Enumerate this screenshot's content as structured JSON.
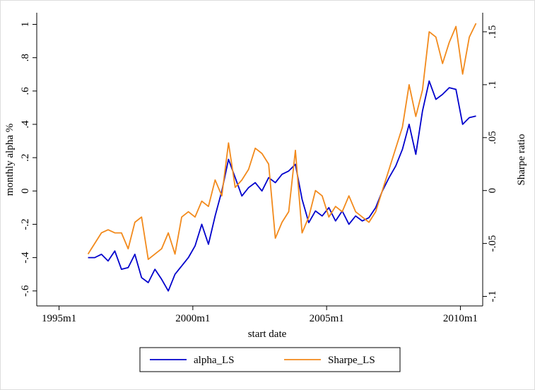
{
  "chart_data": {
    "type": "line",
    "x_label": "start date",
    "y_label": "monthly alpha %",
    "y2_label": "Sharpe ratio",
    "x": [
      433,
      436,
      439,
      442,
      445,
      448,
      451,
      454,
      457,
      460,
      463,
      466,
      469,
      472,
      475,
      478,
      481,
      484,
      487,
      490,
      493,
      496,
      499,
      502,
      505,
      508,
      511,
      514,
      517,
      520,
      523,
      526,
      529,
      532,
      535,
      538,
      541,
      544,
      547,
      550,
      553,
      556,
      559,
      562,
      565,
      568,
      571,
      574,
      577,
      580,
      583,
      586,
      589,
      592,
      595,
      598,
      601,
      604,
      607
    ],
    "series": [
      {
        "name": "alpha_LS",
        "color": "#0000cc",
        "axis": "y",
        "values": [
          -0.4,
          -0.4,
          -0.38,
          -0.42,
          -0.36,
          -0.47,
          -0.46,
          -0.38,
          -0.52,
          -0.55,
          -0.47,
          -0.53,
          -0.6,
          -0.5,
          -0.45,
          -0.4,
          -0.33,
          -0.2,
          -0.32,
          -0.15,
          0.0,
          0.19,
          0.08,
          -0.03,
          0.02,
          0.05,
          0.0,
          0.08,
          0.05,
          0.1,
          0.12,
          0.16,
          -0.05,
          -0.19,
          -0.12,
          -0.15,
          -0.1,
          -0.18,
          -0.12,
          -0.2,
          -0.15,
          -0.18,
          -0.16,
          -0.1,
          0.0,
          0.08,
          0.15,
          0.25,
          0.4,
          0.22,
          0.48,
          0.66,
          0.55,
          0.58,
          0.62,
          0.61,
          0.4,
          0.44,
          0.45
        ]
      },
      {
        "name": "Sharpe_LS",
        "color": "#f28a1c",
        "axis": "y2",
        "values": [
          -0.06,
          -0.05,
          -0.04,
          -0.037,
          -0.04,
          -0.04,
          -0.055,
          -0.03,
          -0.025,
          -0.065,
          -0.06,
          -0.055,
          -0.04,
          -0.06,
          -0.025,
          -0.02,
          -0.025,
          -0.01,
          -0.015,
          0.01,
          -0.005,
          0.045,
          0.003,
          0.01,
          0.02,
          0.04,
          0.035,
          0.025,
          -0.045,
          -0.03,
          -0.02,
          0.038,
          -0.04,
          -0.025,
          0.0,
          -0.005,
          -0.025,
          -0.015,
          -0.02,
          -0.005,
          -0.02,
          -0.025,
          -0.03,
          -0.02,
          0.0,
          0.02,
          0.04,
          0.06,
          0.1,
          0.07,
          0.095,
          0.15,
          0.145,
          0.12,
          0.14,
          0.155,
          0.11,
          0.145,
          0.158
        ]
      }
    ],
    "xlim": [
      410,
      610
    ],
    "xticks": [
      {
        "value": 420,
        "label": "1995m1"
      },
      {
        "value": 480,
        "label": "2000m1"
      },
      {
        "value": 540,
        "label": "2005m1"
      },
      {
        "value": 600,
        "label": "2010m1"
      }
    ],
    "ylim": [
      -0.69,
      1.07
    ],
    "yticks": [
      {
        "value": -0.6,
        "label": "-.6"
      },
      {
        "value": -0.4,
        "label": "-.4"
      },
      {
        "value": -0.2,
        "label": "-.2"
      },
      0,
      {
        "value": 0.2,
        "label": ".2"
      },
      {
        "value": 0.4,
        "label": ".4"
      },
      {
        "value": 0.6,
        "label": ".6"
      },
      {
        "value": 0.8,
        "label": ".8"
      },
      1
    ],
    "y2lim": [
      -0.109,
      0.168
    ],
    "y2ticks": [
      {
        "value": -0.1,
        "label": "-.1"
      },
      {
        "value": -0.05,
        "label": "-.05"
      },
      0,
      {
        "value": 0.05,
        "label": ".05"
      },
      {
        "value": 0.1,
        "label": ".1"
      },
      {
        "value": 0.15,
        "label": ".15"
      }
    ],
    "grid": false,
    "legend": "bottom"
  }
}
